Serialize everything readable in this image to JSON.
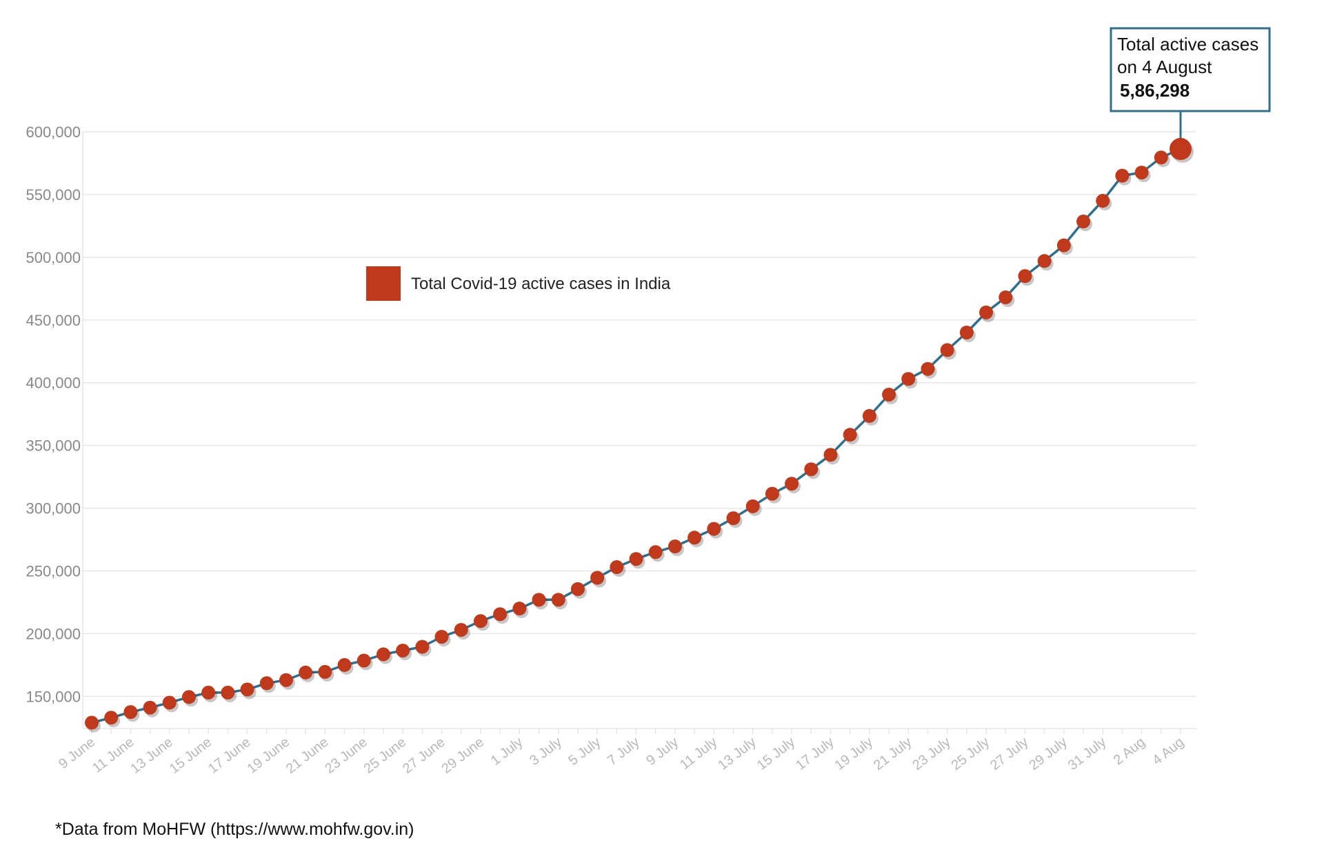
{
  "chart_data": {
    "type": "line",
    "legend": {
      "label": "Total Covid-19 active cases in India",
      "placement": "top-center"
    },
    "series": [
      {
        "name": "Total Covid-19 active cases in India",
        "color_marker": "#c0391b",
        "color_line": "#2e6e8e",
        "x": [
          "9 June",
          "10 June",
          "11 June",
          "12 June",
          "13 June",
          "14 June",
          "15 June",
          "16 June",
          "17 June",
          "18 June",
          "19 June",
          "20 June",
          "21 June",
          "22 June",
          "23 June",
          "24 June",
          "25 June",
          "26 June",
          "27 June",
          "28 June",
          "29 June",
          "30 June",
          "1 July",
          "2 July",
          "3 July",
          "4 July",
          "5 July",
          "6 July",
          "7 July",
          "8 July",
          "9 July",
          "10 July",
          "11 July",
          "12 July",
          "13 July",
          "14 July",
          "15 July",
          "16 July",
          "17 July",
          "18 July",
          "19 July",
          "20 July",
          "21 July",
          "22 July",
          "23 July",
          "24 July",
          "25 July",
          "26 July",
          "27 July",
          "28 July",
          "29 July",
          "30 July",
          "31 July",
          "1 Aug",
          "2 Aug",
          "3 Aug",
          "4 Aug"
        ],
        "values": [
          129000,
          133000,
          137500,
          141000,
          145000,
          149500,
          153000,
          153000,
          155500,
          160500,
          163000,
          169000,
          169500,
          175000,
          178500,
          183500,
          186500,
          189500,
          197500,
          203000,
          210000,
          215500,
          220000,
          227000,
          227000,
          235500,
          244500,
          253000,
          259500,
          265000,
          269500,
          276500,
          283500,
          292000,
          301500,
          311500,
          319500,
          331000,
          342500,
          358500,
          373500,
          390500,
          403000,
          411000,
          426000,
          440000,
          456000,
          468000,
          485000,
          497000,
          509500,
          528500,
          545000,
          565000,
          567500,
          579500,
          586298
        ]
      }
    ],
    "x_tick_labels": [
      "9 June",
      "11 June",
      "13 June",
      "15 June",
      "17 June",
      "19 June",
      "21 June",
      "23 June",
      "25 June",
      "27 June",
      "29 June",
      "1 July",
      "3 July",
      "5 July",
      "7 July",
      "9 July",
      "11 July",
      "13 July",
      "15 July",
      "17 July",
      "19 July",
      "21 July",
      "23 July",
      "25 July",
      "27 July",
      "29 July",
      "31 July",
      "2 Aug",
      "4 Aug"
    ],
    "y_tick_labels": [
      "150,000",
      "200,000",
      "250,000",
      "300,000",
      "350,000",
      "400,000",
      "450,000",
      "500,000",
      "550,000",
      "600,000"
    ],
    "y_ticks": [
      150000,
      200000,
      250000,
      300000,
      350000,
      400000,
      450000,
      500000,
      550000,
      600000
    ],
    "ylim": [
      126000,
      600000
    ],
    "grid": "horizontal",
    "xlabel": "",
    "ylabel": "",
    "annotation": {
      "line1": "Total active cases",
      "line2": "on 4 August",
      "value": "5,86,298",
      "points_to": "4 Aug"
    }
  },
  "source_note": "*Data from MoHFW (https://www.mohfw.gov.in)",
  "colors": {
    "marker": "#c0391b",
    "line": "#2e6e8e",
    "callout_border": "#2e6e8e",
    "grid": "#e6e6e6"
  }
}
